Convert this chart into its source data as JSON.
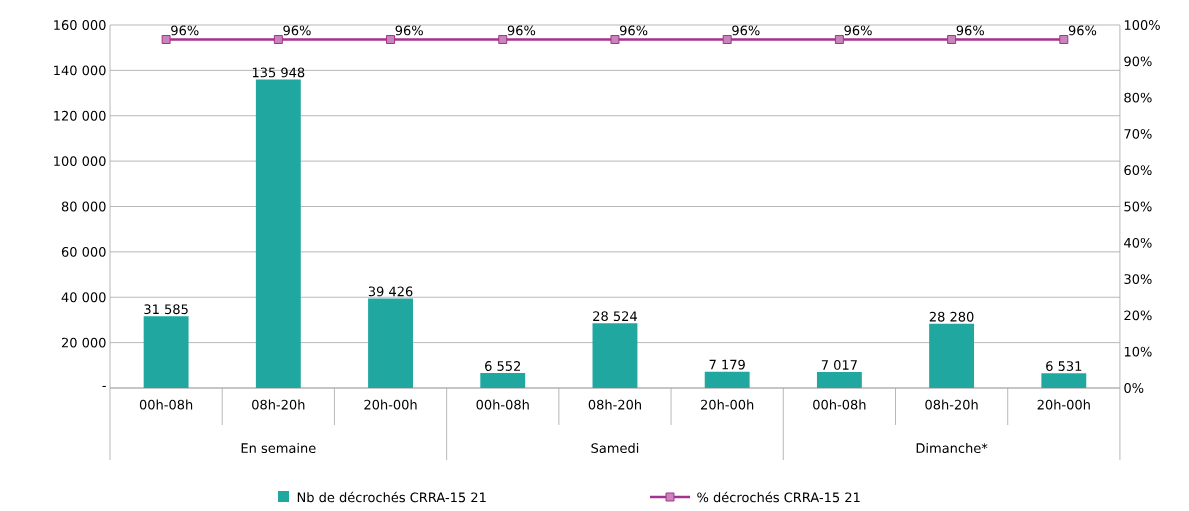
{
  "chart_data": {
    "type": "bar",
    "categories": [
      "00h-08h",
      "08h-20h",
      "20h-00h",
      "00h-08h",
      "08h-20h",
      "20h-00h",
      "00h-08h",
      "08h-20h",
      "20h-00h"
    ],
    "annotations": [
      "En semaine",
      "Samedi",
      "Dimanche*"
    ],
    "series": [
      {
        "name": "Nb de décrochés CRRA-15 21",
        "color": "#1fa7a0",
        "values": [
          31585,
          135948,
          39426,
          6552,
          28524,
          7179,
          7017,
          28280,
          6531
        ],
        "value_labels": [
          "31 585",
          "135 948",
          "39 426",
          "6 552",
          "28 524",
          "7 179",
          "7 017",
          "28 280",
          "6 531"
        ]
      },
      {
        "name": "% décrochés CRRA-15 21",
        "type": "line",
        "axis": "y2",
        "color": "#a6328f",
        "marker": "square",
        "values": [
          96,
          96,
          96,
          96,
          96,
          96,
          96,
          96,
          96
        ],
        "value_labels": [
          "96%",
          "96%",
          "96%",
          "96%",
          "96%",
          "96%",
          "96%",
          "96%",
          "96%"
        ]
      }
    ],
    "ylim": [
      0,
      160000
    ],
    "yticks": [
      {
        "value": 0,
        "label": "-"
      },
      {
        "value": 20000,
        "label": "20 000"
      },
      {
        "value": 40000,
        "label": "40 000"
      },
      {
        "value": 60000,
        "label": "60 000"
      },
      {
        "value": 80000,
        "label": "80 000"
      },
      {
        "value": 100000,
        "label": "100 000"
      },
      {
        "value": 120000,
        "label": "120 000"
      },
      {
        "value": 140000,
        "label": "140 000"
      },
      {
        "value": 160000,
        "label": "160 000"
      }
    ],
    "y2lim": [
      0,
      100
    ],
    "y2ticks": [
      {
        "value": 0,
        "label": "0%"
      },
      {
        "value": 10,
        "label": "10%"
      },
      {
        "value": 20,
        "label": "20%"
      },
      {
        "value": 30,
        "label": "30%"
      },
      {
        "value": 40,
        "label": "40%"
      },
      {
        "value": 50,
        "label": "50%"
      },
      {
        "value": 60,
        "label": "60%"
      },
      {
        "value": 70,
        "label": "70%"
      },
      {
        "value": 80,
        "label": "80%"
      },
      {
        "value": 90,
        "label": "90%"
      },
      {
        "value": 100,
        "label": "100%"
      }
    ],
    "grid": "y",
    "legend": "bottom"
  }
}
